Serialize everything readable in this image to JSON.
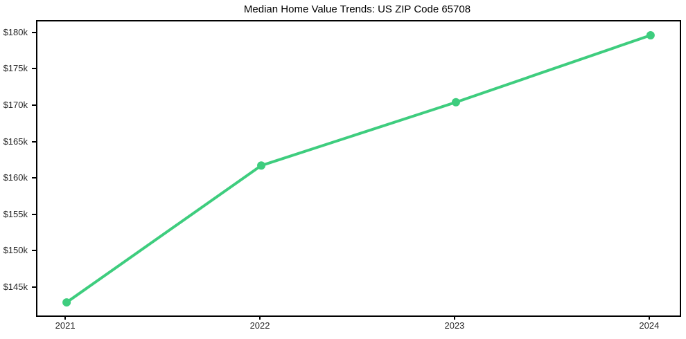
{
  "chart_data": {
    "type": "line",
    "title": "Median Home Value Trends: US ZIP Code 65708",
    "xlabel": "",
    "ylabel": "",
    "x": [
      2021,
      2022,
      2023,
      2024
    ],
    "series": [
      {
        "name": "Median Home Value",
        "values": [
          143100,
          161900,
          170600,
          179800
        ]
      }
    ],
    "xticks": [
      2021,
      2022,
      2023,
      2024
    ],
    "xtick_labels": [
      "2021",
      "2022",
      "2023",
      "2024"
    ],
    "yticks": [
      145000,
      150000,
      155000,
      160000,
      165000,
      170000,
      175000,
      180000
    ],
    "ytick_labels": [
      "$145k",
      "$150k",
      "$155k",
      "$160k",
      "$165k",
      "$170k",
      "$175k",
      "$180k"
    ],
    "xlim": [
      2020.85,
      2024.15
    ],
    "ylim": [
      141300,
      181700
    ],
    "grid": false,
    "legend_position": "none",
    "colors": {
      "line": "#3ecd7e",
      "marker": "#3ecd7e",
      "frame": "#000000",
      "tick_label": "#262626",
      "title": "#000000",
      "background": "#ffffff"
    },
    "marker": "circle",
    "line_width": 4,
    "marker_radius": 6
  }
}
